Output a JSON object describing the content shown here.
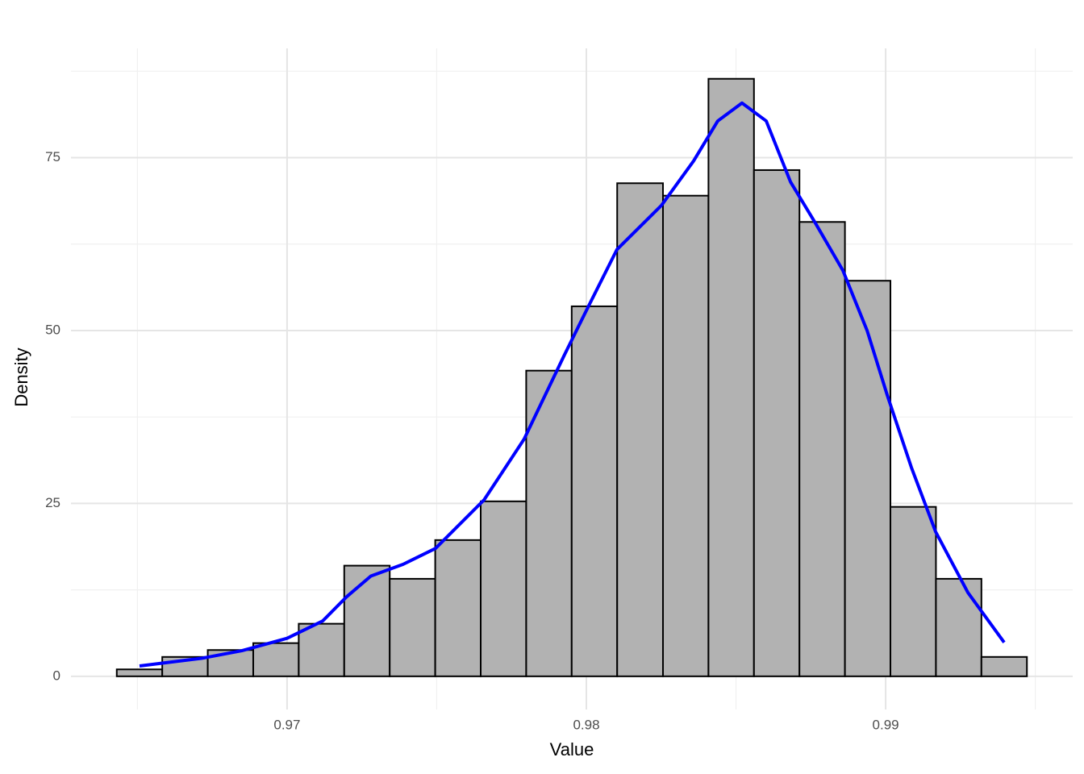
{
  "chart_data": {
    "type": "histogram",
    "x_label": "Value",
    "y_label": "Density",
    "bins": [
      0.96431,
      0.96583,
      0.96735,
      0.96887,
      0.97039,
      0.97191,
      0.97343,
      0.97495,
      0.97647,
      0.97799,
      0.97951,
      0.98103,
      0.98256,
      0.98408,
      0.9856,
      0.98712,
      0.98864,
      0.99016,
      0.99168,
      0.9932,
      0.99472
    ],
    "values": [
      1.0,
      2.8,
      3.8,
      4.8,
      7.6,
      16.0,
      14.1,
      19.7,
      25.3,
      44.2,
      53.5,
      71.3,
      69.5,
      86.4,
      73.2,
      65.7,
      57.2,
      24.5,
      14.1,
      2.8
    ],
    "color": "#b2b2b2",
    "edgecolor": "#000000",
    "density_x": [
      0.96507,
      0.96714,
      0.96849,
      0.97,
      0.97119,
      0.97199,
      0.9728,
      0.97388,
      0.97496,
      0.97658,
      0.97792,
      0.97927,
      0.98,
      0.98102,
      0.98251,
      0.98358,
      0.98439,
      0.9852,
      0.98601,
      0.98682,
      0.98763,
      0.98857,
      0.98938,
      0.99005,
      0.99086,
      0.99167,
      0.99275,
      0.99396
    ],
    "density_values": [
      1.5,
      2.6,
      3.7,
      5.5,
      8.0,
      11.5,
      14.5,
      16.2,
      18.5,
      25.5,
      34.3,
      46.5,
      52.9,
      61.7,
      68.1,
      74.5,
      80.3,
      82.9,
      80.3,
      71.5,
      65.7,
      58.7,
      50.0,
      40.7,
      30.2,
      20.9,
      12.1,
      4.9
    ],
    "density_color": "#0000ff",
    "xlim": [
      0.96278,
      0.99625
    ],
    "ylim": [
      -4.8,
      90.8
    ],
    "xticks": [
      0.97,
      0.98,
      0.99
    ],
    "yticks": [
      0,
      25,
      50,
      75
    ],
    "x_minor_ticks": [
      0.965,
      0.975,
      0.985,
      0.995
    ],
    "y_minor_ticks": [
      12.5,
      37.5,
      62.5,
      87.5
    ],
    "grid": true
  }
}
